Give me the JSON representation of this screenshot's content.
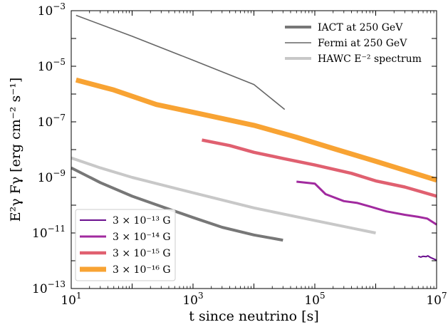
{
  "chart_data": {
    "type": "line",
    "xlabel": "t since neutrino [s]",
    "ylabel": "E²γ Fγ [erg cm⁻² s⁻¹]",
    "xscale": "log",
    "yscale": "log",
    "xlim": [
      10,
      10000000
    ],
    "ylim": [
      1e-13,
      0.001
    ],
    "x_ticks": [
      {
        "value": 10,
        "base": "10",
        "exp": "1"
      },
      {
        "value": 1000,
        "base": "10",
        "exp": "3"
      },
      {
        "value": 100000,
        "base": "10",
        "exp": "5"
      },
      {
        "value": 10000000,
        "base": "10",
        "exp": "7"
      }
    ],
    "y_ticks": [
      {
        "value": 1e-13,
        "base": "10",
        "exp": "−13"
      },
      {
        "value": 1e-11,
        "base": "10",
        "exp": "−11"
      },
      {
        "value": 1e-09,
        "base": "10",
        "exp": "−9"
      },
      {
        "value": 1e-07,
        "base": "10",
        "exp": "−7"
      },
      {
        "value": 1e-05,
        "base": "10",
        "exp": "−5"
      },
      {
        "value": 0.001,
        "base": "10",
        "exp": "−3"
      }
    ],
    "legend_upper": {
      "placement": "top-right",
      "entries": [
        {
          "label": "IACT at 250 GeV",
          "color": "#777777",
          "width": 4
        },
        {
          "label": "Fermi at 250 GeV",
          "color": "#666666",
          "width": 1.6
        },
        {
          "label": "HAWC E⁻² spectrum",
          "color": "#c8c8c8",
          "width": 4
        }
      ]
    },
    "legend_lower": {
      "placement": "bottom-left",
      "entries": [
        {
          "label": "3 × 10⁻¹³ G",
          "color": "#6a0f8e",
          "width": 2
        },
        {
          "label": "3 × 10⁻¹⁴ G",
          "color": "#a12a9f",
          "width": 3
        },
        {
          "label": "3 × 10⁻¹⁵ G",
          "color": "#e06070",
          "width": 4.5
        },
        {
          "label": "3 × 10⁻¹⁶ G",
          "color": "#f8a333",
          "width": 7
        }
      ]
    },
    "series": [
      {
        "id": "fermi",
        "color": "#666666",
        "width": 1.6,
        "points": [
          [
            12,
            0.00068
          ],
          [
            100,
            0.00012
          ],
          [
            1000,
            1.65e-05
          ],
          [
            10000,
            2.2e-06
          ],
          [
            32000,
            2.8e-07
          ]
        ]
      },
      {
        "id": "iact",
        "color": "#777777",
        "width": 4,
        "points": [
          [
            10,
            2.2e-09
          ],
          [
            30,
            6.5e-10
          ],
          [
            100,
            2.1e-10
          ],
          [
            300,
            9e-11
          ],
          [
            1000,
            3.6e-11
          ],
          [
            3000,
            1.6e-11
          ],
          [
            10000,
            8.5e-12
          ],
          [
            30000,
            5.5e-12
          ]
        ]
      },
      {
        "id": "hawc",
        "color": "#c8c8c8",
        "width": 4,
        "points": [
          [
            10,
            5e-09
          ],
          [
            30,
            2.2e-09
          ],
          [
            100,
            1e-09
          ],
          [
            1000,
            2.8e-10
          ],
          [
            10000,
            8e-11
          ],
          [
            100000,
            2.8e-11
          ],
          [
            1000000,
            1e-11
          ]
        ]
      },
      {
        "id": "b16",
        "color": "#f8a333",
        "width": 7,
        "points": [
          [
            12,
            3.2e-06
          ],
          [
            50,
            1.4e-06
          ],
          [
            250,
            4.2e-07
          ],
          [
            1000,
            2.2e-07
          ],
          [
            10000,
            7.5e-08
          ],
          [
            50000,
            2.8e-08
          ],
          [
            200000,
            1.1e-08
          ],
          [
            1000000,
            3.8e-09
          ],
          [
            10000000,
            8e-10
          ]
        ]
      },
      {
        "id": "b15",
        "color": "#e06070",
        "width": 4.5,
        "points": [
          [
            1400,
            2.2e-08
          ],
          [
            4000,
            1.4e-08
          ],
          [
            10000,
            8e-09
          ],
          [
            30000,
            4.8e-09
          ],
          [
            100000,
            2.8e-09
          ],
          [
            400000,
            1.4e-09
          ],
          [
            1000000,
            7.5e-10
          ],
          [
            3000000,
            4.5e-10
          ],
          [
            10000000,
            2.1e-10
          ]
        ]
      },
      {
        "id": "b14",
        "color": "#a12a9f",
        "width": 3,
        "points": [
          [
            50000,
            7e-10
          ],
          [
            100000,
            6e-10
          ],
          [
            150000,
            2.5e-10
          ],
          [
            300000,
            1.4e-10
          ],
          [
            500000,
            1.2e-10
          ],
          [
            800000,
            9e-11
          ],
          [
            1500000,
            6e-11
          ],
          [
            3000000,
            4.5e-11
          ],
          [
            5000000,
            3.8e-11
          ],
          [
            7000000,
            3.3e-11
          ],
          [
            10000000,
            2e-11
          ]
        ]
      },
      {
        "id": "b13",
        "color": "#6a0f8e",
        "width": 2,
        "points": [
          [
            5000000,
            1.45e-12
          ],
          [
            5500000,
            1.35e-12
          ],
          [
            6000000,
            1.45e-12
          ],
          [
            6700000,
            1.4e-12
          ],
          [
            7200000,
            1.5e-12
          ],
          [
            8000000,
            1.3e-12
          ],
          [
            10000000,
            1.05e-12
          ]
        ]
      }
    ]
  }
}
